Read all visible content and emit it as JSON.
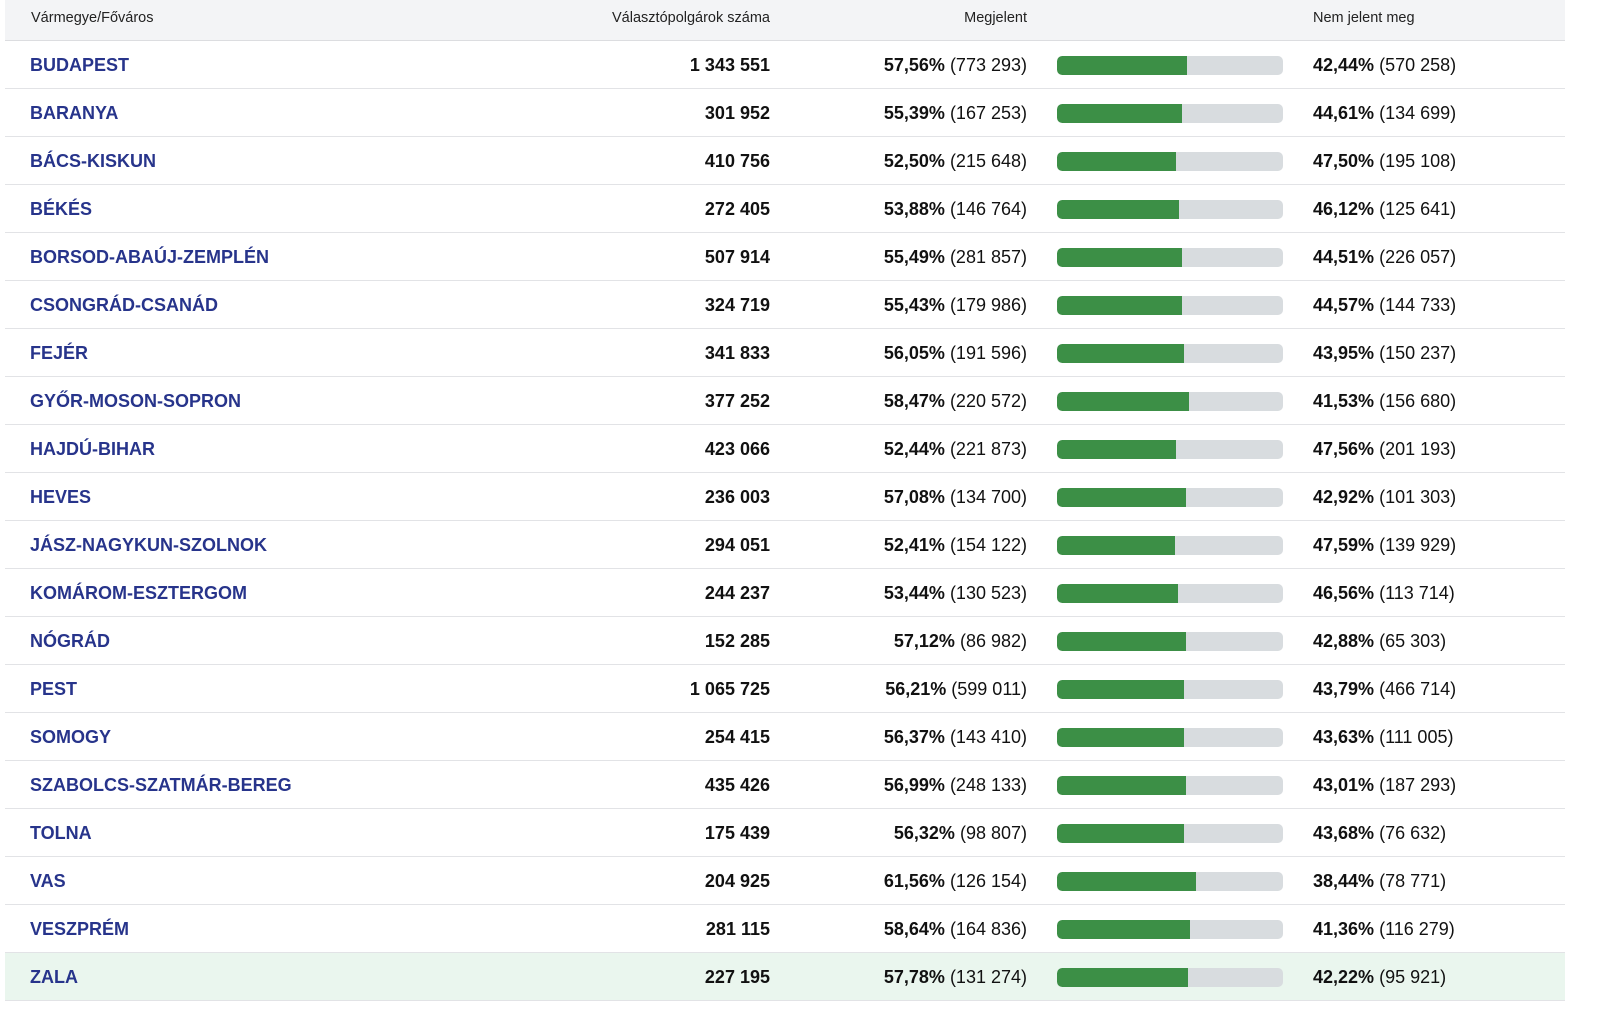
{
  "header": {
    "county": "Vármegye/Főváros",
    "voters": "Választópolgárok száma",
    "turnout": "Megjelent",
    "absent": "Nem jelent meg"
  },
  "colors": {
    "accent_text": "#27348b",
    "bar_fill": "#3c8f46",
    "bar_track": "#d8dcdf",
    "highlight_row": "#eaf6ee"
  },
  "rows": [
    {
      "county": "BUDAPEST",
      "voters": "1 343 551",
      "turnout_pct": "57,56%",
      "turnout_count": "(773 293)",
      "absent_pct": "42,44%",
      "absent_count": "(570 258)",
      "turnout_value": 57.56
    },
    {
      "county": "BARANYA",
      "voters": "301 952",
      "turnout_pct": "55,39%",
      "turnout_count": "(167 253)",
      "absent_pct": "44,61%",
      "absent_count": "(134 699)",
      "turnout_value": 55.39
    },
    {
      "county": "BÁCS-KISKUN",
      "voters": "410 756",
      "turnout_pct": "52,50%",
      "turnout_count": "(215 648)",
      "absent_pct": "47,50%",
      "absent_count": "(195 108)",
      "turnout_value": 52.5
    },
    {
      "county": "BÉKÉS",
      "voters": "272 405",
      "turnout_pct": "53,88%",
      "turnout_count": "(146 764)",
      "absent_pct": "46,12%",
      "absent_count": "(125 641)",
      "turnout_value": 53.88
    },
    {
      "county": "BORSOD-ABAÚJ-ZEMPLÉN",
      "voters": "507 914",
      "turnout_pct": "55,49%",
      "turnout_count": "(281 857)",
      "absent_pct": "44,51%",
      "absent_count": "(226 057)",
      "turnout_value": 55.49
    },
    {
      "county": "CSONGRÁD-CSANÁD",
      "voters": "324 719",
      "turnout_pct": "55,43%",
      "turnout_count": "(179 986)",
      "absent_pct": "44,57%",
      "absent_count": "(144 733)",
      "turnout_value": 55.43
    },
    {
      "county": "FEJÉR",
      "voters": "341 833",
      "turnout_pct": "56,05%",
      "turnout_count": "(191 596)",
      "absent_pct": "43,95%",
      "absent_count": "(150 237)",
      "turnout_value": 56.05
    },
    {
      "county": "GYŐR-MOSON-SOPRON",
      "voters": "377 252",
      "turnout_pct": "58,47%",
      "turnout_count": "(220 572)",
      "absent_pct": "41,53%",
      "absent_count": "(156 680)",
      "turnout_value": 58.47
    },
    {
      "county": "HAJDÚ-BIHAR",
      "voters": "423 066",
      "turnout_pct": "52,44%",
      "turnout_count": "(221 873)",
      "absent_pct": "47,56%",
      "absent_count": "(201 193)",
      "turnout_value": 52.44
    },
    {
      "county": "HEVES",
      "voters": "236 003",
      "turnout_pct": "57,08%",
      "turnout_count": "(134 700)",
      "absent_pct": "42,92%",
      "absent_count": "(101 303)",
      "turnout_value": 57.08
    },
    {
      "county": "JÁSZ-NAGYKUN-SZOLNOK",
      "voters": "294 051",
      "turnout_pct": "52,41%",
      "turnout_count": "(154 122)",
      "absent_pct": "47,59%",
      "absent_count": "(139 929)",
      "turnout_value": 52.41
    },
    {
      "county": "KOMÁROM-ESZTERGOM",
      "voters": "244 237",
      "turnout_pct": "53,44%",
      "turnout_count": "(130 523)",
      "absent_pct": "46,56%",
      "absent_count": "(113 714)",
      "turnout_value": 53.44
    },
    {
      "county": "NÓGRÁD",
      "voters": "152 285",
      "turnout_pct": "57,12%",
      "turnout_count": "(86 982)",
      "absent_pct": "42,88%",
      "absent_count": "(65 303)",
      "turnout_value": 57.12
    },
    {
      "county": "PEST",
      "voters": "1 065 725",
      "turnout_pct": "56,21%",
      "turnout_count": "(599 011)",
      "absent_pct": "43,79%",
      "absent_count": "(466 714)",
      "turnout_value": 56.21
    },
    {
      "county": "SOMOGY",
      "voters": "254 415",
      "turnout_pct": "56,37%",
      "turnout_count": "(143 410)",
      "absent_pct": "43,63%",
      "absent_count": "(111 005)",
      "turnout_value": 56.37
    },
    {
      "county": "SZABOLCS-SZATMÁR-BEREG",
      "voters": "435 426",
      "turnout_pct": "56,99%",
      "turnout_count": "(248 133)",
      "absent_pct": "43,01%",
      "absent_count": "(187 293)",
      "turnout_value": 56.99
    },
    {
      "county": "TOLNA",
      "voters": "175 439",
      "turnout_pct": "56,32%",
      "turnout_count": "(98 807)",
      "absent_pct": "43,68%",
      "absent_count": "(76 632)",
      "turnout_value": 56.32
    },
    {
      "county": "VAS",
      "voters": "204 925",
      "turnout_pct": "61,56%",
      "turnout_count": "(126 154)",
      "absent_pct": "38,44%",
      "absent_count": "(78 771)",
      "turnout_value": 61.56
    },
    {
      "county": "VESZPRÉM",
      "voters": "281 115",
      "turnout_pct": "58,64%",
      "turnout_count": "(164 836)",
      "absent_pct": "41,36%",
      "absent_count": "(116 279)",
      "turnout_value": 58.64
    },
    {
      "county": "ZALA",
      "voters": "227 195",
      "turnout_pct": "57,78%",
      "turnout_count": "(131 274)",
      "absent_pct": "42,22%",
      "absent_count": "(95 921)",
      "turnout_value": 57.78,
      "highlighted": true
    }
  ]
}
